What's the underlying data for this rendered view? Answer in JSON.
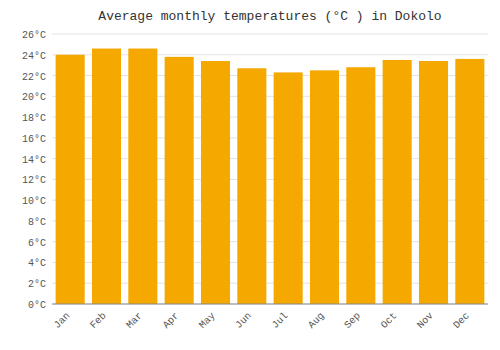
{
  "chart_data": {
    "type": "bar",
    "title": "Average monthly temperatures (°C ) in Dokolo",
    "categories": [
      "Jan",
      "Feb",
      "Mar",
      "Apr",
      "May",
      "Jun",
      "Jul",
      "Aug",
      "Sep",
      "Oct",
      "Nov",
      "Dec"
    ],
    "values": [
      24.0,
      24.6,
      24.6,
      23.8,
      23.4,
      22.7,
      22.3,
      22.5,
      22.8,
      23.5,
      23.4,
      23.6
    ],
    "color": "#F5A800",
    "ylim": [
      0,
      26
    ],
    "yticks": [
      {
        "value": 0,
        "label": "0°C"
      },
      {
        "value": 2,
        "label": "2°C"
      },
      {
        "value": 4,
        "label": "4°C"
      },
      {
        "value": 6,
        "label": "6°C"
      },
      {
        "value": 8,
        "label": "8°C"
      },
      {
        "value": 10,
        "label": "10°C"
      },
      {
        "value": 12,
        "label": "12°C"
      },
      {
        "value": 14,
        "label": "14°C"
      },
      {
        "value": 16,
        "label": "16°C"
      },
      {
        "value": 18,
        "label": "18°C"
      },
      {
        "value": 20,
        "label": "20°C"
      },
      {
        "value": 22,
        "label": "22°C"
      },
      {
        "value": 24,
        "label": "24°C"
      },
      {
        "value": 26,
        "label": "26°C"
      }
    ],
    "grid": true
  }
}
